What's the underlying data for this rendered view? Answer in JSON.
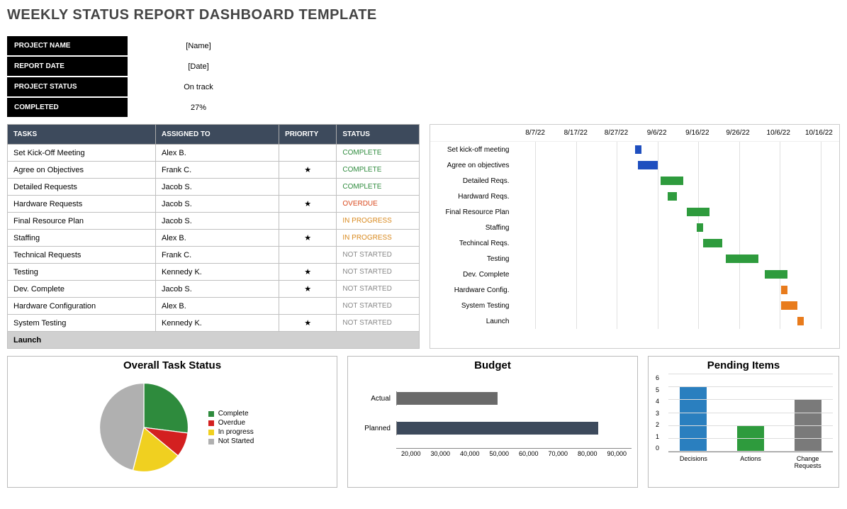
{
  "title": "WEEKLY STATUS REPORT DASHBOARD TEMPLATE",
  "meta": {
    "rows": [
      {
        "label": "PROJECT NAME",
        "value": "[Name]"
      },
      {
        "label": "REPORT DATE",
        "value": "[Date]"
      },
      {
        "label": "PROJECT STATUS",
        "value": "On track"
      },
      {
        "label": "COMPLETED",
        "value": "27%"
      }
    ]
  },
  "tasks": {
    "headers": [
      "TASKS",
      "ASSIGNED TO",
      "PRIORITY",
      "STATUS"
    ],
    "rows": [
      {
        "task": "Set Kick-Off Meeting",
        "assigned": "Alex B.",
        "priority": "",
        "status": "COMPLETE",
        "color": "#2e8b3d"
      },
      {
        "task": "Agree on Objectives",
        "assigned": "Frank C.",
        "priority": "★",
        "status": "COMPLETE",
        "color": "#2e8b3d"
      },
      {
        "task": "Detailed Requests",
        "assigned": "Jacob S.",
        "priority": "",
        "status": "COMPLETE",
        "color": "#2e8b3d"
      },
      {
        "task": "Hardware Requests",
        "assigned": "Jacob S.",
        "priority": "★",
        "status": "OVERDUE",
        "color": "#d94a1f"
      },
      {
        "task": "Final Resource Plan",
        "assigned": "Jacob S.",
        "priority": "",
        "status": "IN PROGRESS",
        "color": "#d98a1f"
      },
      {
        "task": "Staffing",
        "assigned": "Alex B.",
        "priority": "★",
        "status": "IN PROGRESS",
        "color": "#d98a1f"
      },
      {
        "task": "Technical Requests",
        "assigned": "Frank C.",
        "priority": "",
        "status": "NOT STARTED",
        "color": "#888888"
      },
      {
        "task": "Testing",
        "assigned": "Kennedy K.",
        "priority": "★",
        "status": "NOT STARTED",
        "color": "#888888"
      },
      {
        "task": "Dev. Complete",
        "assigned": "Jacob S.",
        "priority": "★",
        "status": "NOT STARTED",
        "color": "#888888"
      },
      {
        "task": "Hardware Configuration",
        "assigned": "Alex B.",
        "priority": "",
        "status": "NOT STARTED",
        "color": "#888888"
      },
      {
        "task": "System Testing",
        "assigned": "Kennedy K.",
        "priority": "★",
        "status": "NOT STARTED",
        "color": "#888888"
      }
    ],
    "footer": "Launch"
  },
  "gantt": {
    "dates": [
      "8/7/22",
      "8/17/22",
      "8/27/22",
      "9/6/22",
      "9/16/22",
      "9/26/22",
      "10/6/22",
      "10/16/22"
    ],
    "rows": [
      {
        "label": "Set kick-off meeting",
        "left": 37,
        "width": 2.0,
        "color": "#1f4fbf"
      },
      {
        "label": "Agree on objectives",
        "left": 38,
        "width": 6,
        "color": "#1f4fbf"
      },
      {
        "label": "Detailed Reqs.",
        "left": 45,
        "width": 7,
        "color": "#2e9b3d"
      },
      {
        "label": "Hardward Reqs.",
        "left": 47,
        "width": 3,
        "color": "#2e9b3d"
      },
      {
        "label": "Final Resource Plan",
        "left": 53,
        "width": 7,
        "color": "#2e9b3d"
      },
      {
        "label": "Staffing",
        "left": 56,
        "width": 2.0,
        "color": "#2e9b3d"
      },
      {
        "label": "Techincal Reqs.",
        "left": 58,
        "width": 6,
        "color": "#2e9b3d"
      },
      {
        "label": "Testing",
        "left": 65,
        "width": 10,
        "color": "#2e9b3d"
      },
      {
        "label": "Dev. Complete",
        "left": 77,
        "width": 7,
        "color": "#2e9b3d"
      },
      {
        "label": "Hardware Config.",
        "left": 82,
        "width": 2.0,
        "color": "#e87b1c"
      },
      {
        "label": "System Testing",
        "left": 82,
        "width": 5,
        "color": "#e87b1c"
      },
      {
        "label": "Launch",
        "left": 87,
        "width": 2.0,
        "color": "#e87b1c"
      }
    ]
  },
  "pie": {
    "title": "Overall Task Status",
    "slices": [
      {
        "label": "Complete",
        "value": 27,
        "color": "#2e8b3d"
      },
      {
        "label": "Overdue",
        "value": 9,
        "color": "#d32020"
      },
      {
        "label": "In progress",
        "value": 18,
        "color": "#f0d020"
      },
      {
        "label": "Not Started",
        "value": 46,
        "color": "#b0b0b0"
      }
    ],
    "legend_marker": "■"
  },
  "budget": {
    "title": "Budget",
    "xmin": 20000,
    "xmax": 90000,
    "xstep": 10000,
    "xticks": [
      "20,000",
      "30,000",
      "40,000",
      "50,000",
      "60,000",
      "70,000",
      "80,000",
      "90,000"
    ],
    "bars": [
      {
        "label": "Actual",
        "value": 50000,
        "color": "#6a6a6a"
      },
      {
        "label": "Planned",
        "value": 80000,
        "color": "#3d4a5c"
      }
    ]
  },
  "pending": {
    "title": "Pending Items",
    "ymax": 6,
    "yticks": [
      "0",
      "1",
      "2",
      "3",
      "4",
      "5",
      "6"
    ],
    "bars": [
      {
        "label": "Decisions",
        "value": 5,
        "color": "#2a7fbf"
      },
      {
        "label": "Actions",
        "value": 2,
        "color": "#2e9b3d"
      },
      {
        "label": "Change Requests",
        "value": 4,
        "color": "#7a7a7a"
      }
    ]
  },
  "colors": {
    "header_bg": "#3d4a5c",
    "black": "#000000"
  }
}
